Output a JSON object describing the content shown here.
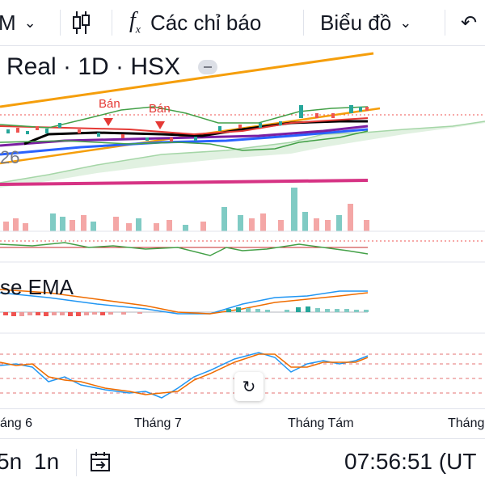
{
  "toolbar": {
    "interval": "M",
    "indicators_label": "Các chỉ báo",
    "chart_type_label": "Biểu đồ",
    "fx_icon_text": "f",
    "fx_sub": "x",
    "undo_icon": "undo-icon"
  },
  "legend": {
    "symbol_text": "Real · 1D · HSX"
  },
  "signals": {
    "sell_1": "Bán",
    "sell_2": "Bán"
  },
  "indicator_value": "26",
  "ema_label": "se EMA",
  "time_axis": {
    "ticks": [
      "áng 6",
      "Tháng 7",
      "Tháng Tám",
      "Tháng"
    ]
  },
  "bottom": {
    "range_5": "5n",
    "range_1": "1n",
    "clock": "07:56:51 (UT"
  },
  "colors": {
    "up": "#26a69a",
    "down": "#ef5350",
    "accent": "#f59e0b",
    "magenta": "#d63384",
    "blue": "#2962ff",
    "purple": "#7b1fa2"
  }
}
